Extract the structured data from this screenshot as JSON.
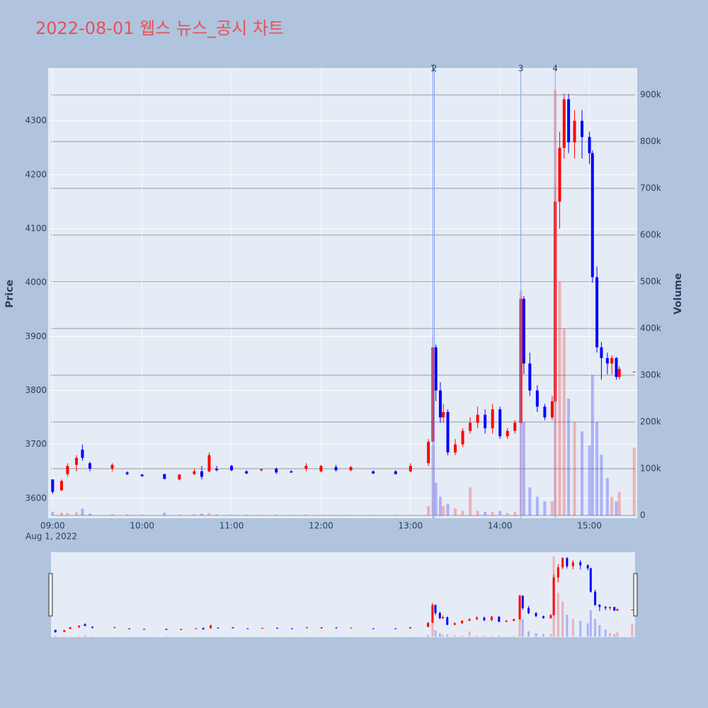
{
  "chart_data": {
    "type": "candlestick",
    "title": "2022-08-01 웹스 뉴스_공시 차트",
    "y_axis_label": "Price",
    "y2_axis_label": "Volume",
    "x_date": "Aug 1, 2022",
    "x": [
      "09:00",
      "09:06",
      "09:10",
      "09:16",
      "09:20",
      "09:25",
      "09:40",
      "09:50",
      "10:00",
      "10:15",
      "10:25",
      "10:35",
      "10:40",
      "10:45",
      "10:50",
      "11:00",
      "11:10",
      "11:20",
      "11:30",
      "11:40",
      "11:50",
      "12:00",
      "12:10",
      "12:20",
      "12:35",
      "12:50",
      "13:00",
      "13:12",
      "13:15",
      "13:17",
      "13:20",
      "13:22",
      "13:25",
      "13:30",
      "13:35",
      "13:40",
      "13:45",
      "13:50",
      "13:55",
      "14:00",
      "14:05",
      "14:10",
      "14:14",
      "14:16",
      "14:20",
      "14:25",
      "14:30",
      "14:35",
      "14:37",
      "14:40",
      "14:43",
      "14:46",
      "14:50",
      "14:55",
      "15:00",
      "15:02",
      "15:05",
      "15:08",
      "15:12",
      "15:15",
      "15:18",
      "15:20",
      "15:30"
    ],
    "open": [
      3635,
      3615,
      3645,
      3662,
      3690,
      3665,
      3655,
      3648,
      3644,
      3645,
      3635,
      3645,
      3650,
      3650,
      3655,
      3660,
      3650,
      3652,
      3655,
      3650,
      3655,
      3650,
      3658,
      3652,
      3650,
      3650,
      3650,
      3665,
      3705,
      3880,
      3800,
      3750,
      3760,
      3685,
      3700,
      3725,
      3740,
      3755,
      3730,
      3765,
      3715,
      3725,
      3740,
      3970,
      3850,
      3800,
      3770,
      3750,
      3780,
      4150,
      4250,
      4340,
      4260,
      4300,
      4270,
      4240,
      4010,
      3880,
      3860,
      3850,
      3860,
      3825,
      3835
    ],
    "high": [
      3635,
      3635,
      3665,
      3680,
      3700,
      3668,
      3665,
      3650,
      3645,
      3645,
      3645,
      3655,
      3660,
      3685,
      3660,
      3662,
      3652,
      3655,
      3657,
      3652,
      3665,
      3662,
      3662,
      3660,
      3652,
      3652,
      3665,
      3710,
      3900,
      3885,
      3815,
      3775,
      3765,
      3710,
      3730,
      3750,
      3770,
      3765,
      3775,
      3770,
      3730,
      3745,
      3975,
      3975,
      3870,
      3810,
      3775,
      3790,
      4180,
      4280,
      4350,
      4350,
      4320,
      4320,
      4280,
      4245,
      4030,
      3890,
      3870,
      3865,
      3862,
      3845,
      3835
    ],
    "low": [
      3608,
      3613,
      3640,
      3650,
      3670,
      3650,
      3650,
      3643,
      3640,
      3635,
      3633,
      3643,
      3635,
      3648,
      3650,
      3650,
      3645,
      3650,
      3645,
      3647,
      3650,
      3648,
      3650,
      3650,
      3645,
      3644,
      3648,
      3660,
      3700,
      3780,
      3740,
      3740,
      3680,
      3680,
      3695,
      3720,
      3730,
      3720,
      3720,
      3710,
      3710,
      3720,
      3735,
      3830,
      3790,
      3760,
      3745,
      3745,
      3775,
      4100,
      4230,
      4240,
      4230,
      4230,
      4220,
      4000,
      3870,
      3820,
      3830,
      3830,
      3820,
      3820,
      3835
    ],
    "close": [
      3612,
      3632,
      3660,
      3675,
      3675,
      3655,
      3662,
      3645,
      3641,
      3636,
      3644,
      3650,
      3640,
      3680,
      3652,
      3652,
      3646,
      3654,
      3648,
      3648,
      3660,
      3660,
      3652,
      3658,
      3646,
      3645,
      3660,
      3705,
      3880,
      3800,
      3750,
      3760,
      3685,
      3700,
      3725,
      3740,
      3755,
      3730,
      3765,
      3715,
      3725,
      3740,
      3970,
      3850,
      3800,
      3770,
      3750,
      3780,
      4150,
      4250,
      4340,
      4260,
      4300,
      4270,
      4240,
      4010,
      3880,
      3860,
      3850,
      3860,
      3825,
      3840,
      3835
    ],
    "volume": [
      8000,
      6000,
      5000,
      7000,
      15000,
      4000,
      3000,
      2000,
      2000,
      6000,
      2000,
      3000,
      4000,
      5000,
      2000,
      2000,
      1500,
      1000,
      1500,
      1000,
      2000,
      1500,
      1000,
      1000,
      800,
      1000,
      1500,
      20000,
      150000,
      70000,
      40000,
      20000,
      25000,
      15000,
      10000,
      60000,
      10000,
      8000,
      8000,
      10000,
      5000,
      8000,
      480000,
      200000,
      60000,
      40000,
      30000,
      30000,
      910000,
      500000,
      400000,
      250000,
      200000,
      180000,
      150000,
      300000,
      200000,
      130000,
      80000,
      40000,
      30000,
      50000,
      145000
    ],
    "annotations": [
      {
        "x": "13:15",
        "text": "1"
      },
      {
        "x": "13:16",
        "text": "2"
      },
      {
        "x": "14:14",
        "text": "3"
      },
      {
        "x": "14:37",
        "text": "4"
      }
    ],
    "xlim": [
      "08:57",
      "15:32"
    ],
    "xticks": [
      "09:00",
      "10:00",
      "11:00",
      "12:00",
      "13:00",
      "14:00",
      "15:00"
    ],
    "ylim": [
      3563,
      4398
    ],
    "yticks": [
      3600,
      3700,
      3800,
      3900,
      4000,
      4100,
      4200,
      4300
    ],
    "y2lim": [
      -6000,
      957600
    ],
    "y2ticks": [
      0,
      {
        "value": 100000,
        "label": "100k"
      },
      {
        "value": 200000,
        "label": "200k"
      },
      {
        "value": 300000,
        "label": "300k"
      },
      {
        "value": 400000,
        "label": "400k"
      },
      {
        "value": 500000,
        "label": "500k"
      },
      {
        "value": 600000,
        "label": "600k"
      },
      {
        "value": 700000,
        "label": "700k"
      },
      {
        "value": 800000,
        "label": "800k"
      },
      {
        "value": 900000,
        "label": "900k"
      }
    ],
    "increasing_color": "#ff0000",
    "decreasing_color": "#0000ff",
    "annotation_color": "#7f9fff",
    "grid": true
  }
}
